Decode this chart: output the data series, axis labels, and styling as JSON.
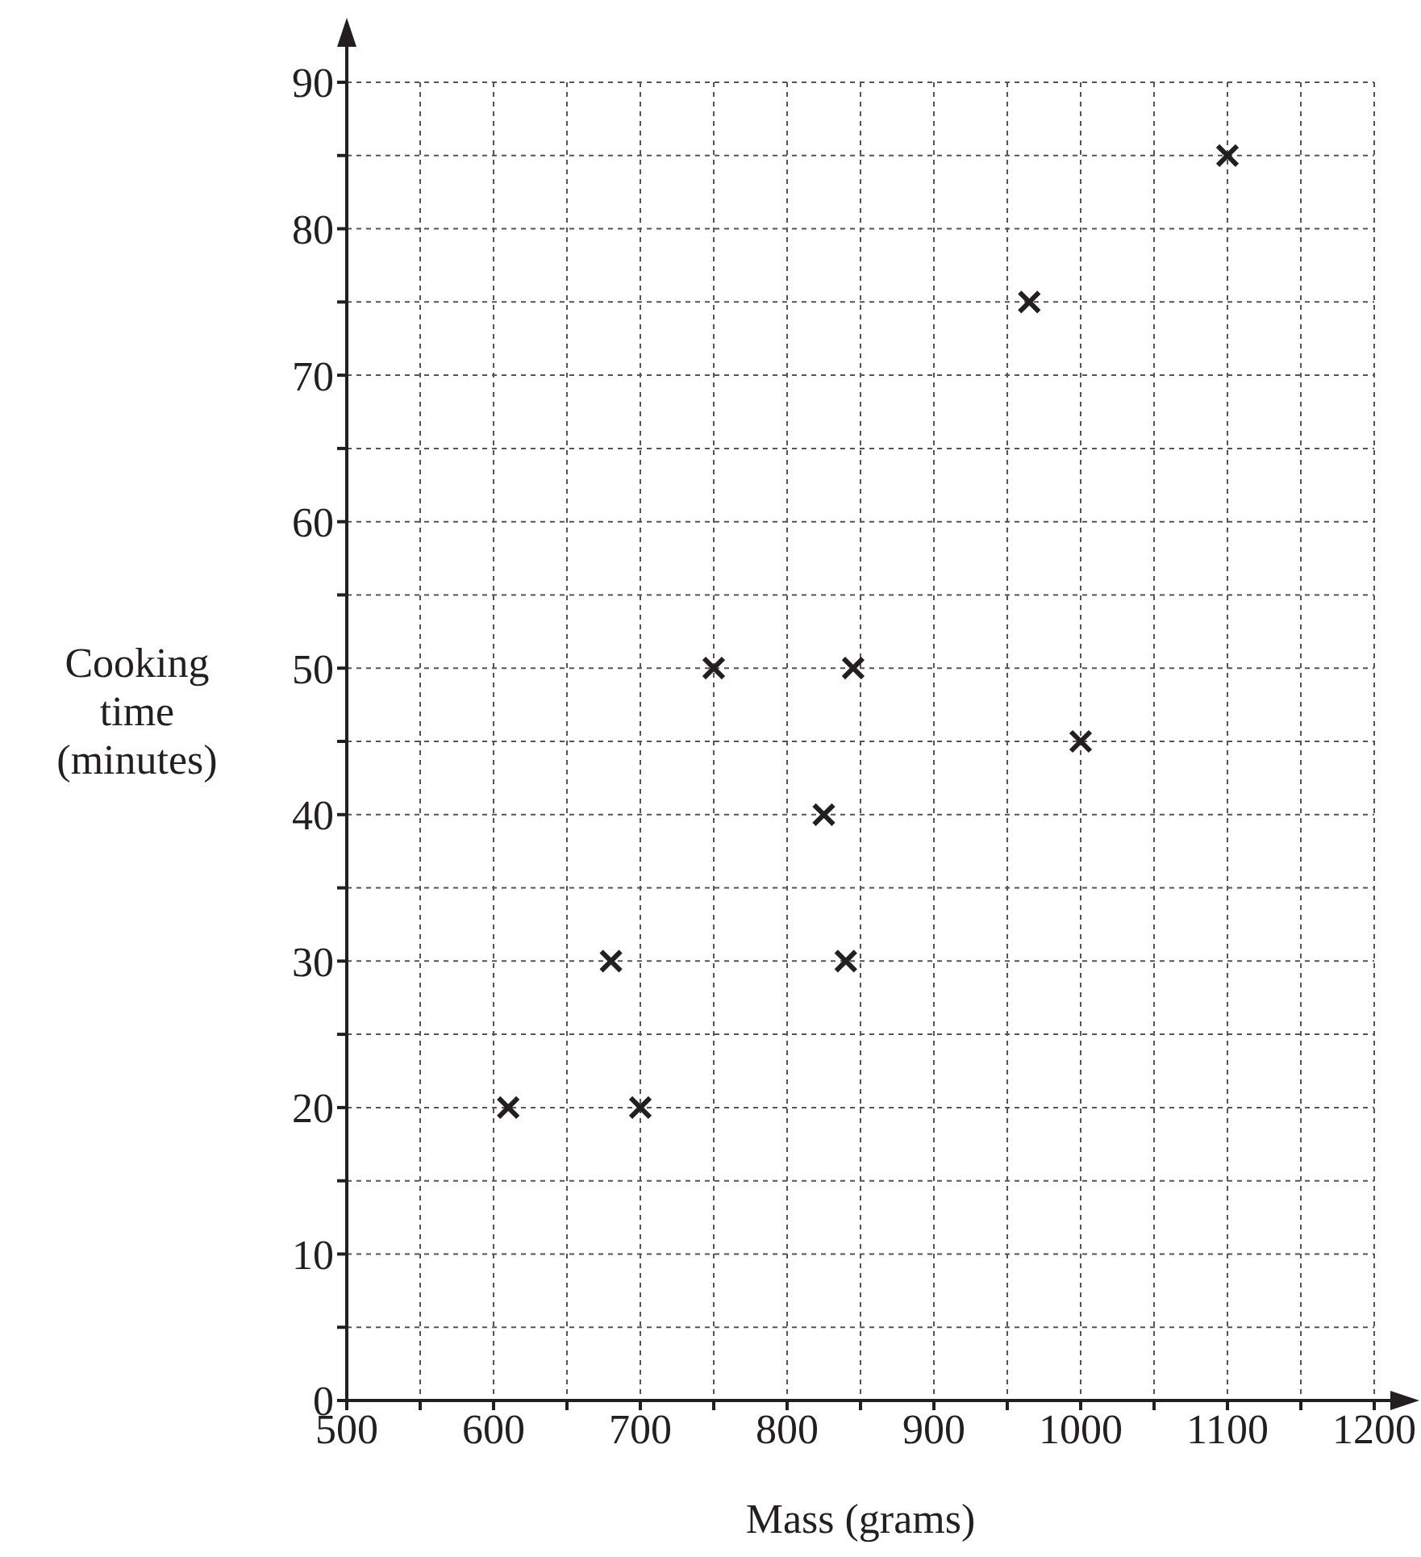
{
  "chart_data": {
    "type": "scatter",
    "xlabel": "Mass (grams)",
    "ylabel": "Cooking time (minutes)",
    "xlim": [
      500,
      1200
    ],
    "xticks": [
      500,
      {
        "value": 550,
        "label": null
      },
      600,
      {
        "value": 650,
        "label": null
      },
      700,
      {
        "value": 750,
        "label": null
      },
      800,
      {
        "value": 850,
        "label": null
      },
      900,
      {
        "value": 950,
        "label": null
      },
      1000,
      {
        "value": 1050,
        "label": null
      },
      1100,
      {
        "value": 1150,
        "label": null
      },
      1200
    ],
    "ylim": [
      0,
      90
    ],
    "yticks": [
      0,
      {
        "value": 5,
        "label": null
      },
      10,
      {
        "value": 15,
        "label": null
      },
      20,
      {
        "value": 25,
        "label": null
      },
      30,
      {
        "value": 35,
        "label": null
      },
      40,
      {
        "value": 45,
        "label": null
      },
      50,
      {
        "value": 55,
        "label": null
      },
      60,
      {
        "value": 65,
        "label": null
      },
      70,
      {
        "value": 75,
        "label": null
      },
      80,
      {
        "value": 85,
        "label": null
      },
      90
    ],
    "grid": true,
    "marker": "cross",
    "series": [
      {
        "color": "#231f20",
        "x": [
          610,
          680,
          700,
          750,
          825,
          840,
          845,
          965,
          1000,
          1100
        ],
        "values": [
          20,
          30,
          20,
          50,
          40,
          30,
          50,
          75,
          45,
          85
        ]
      }
    ]
  }
}
